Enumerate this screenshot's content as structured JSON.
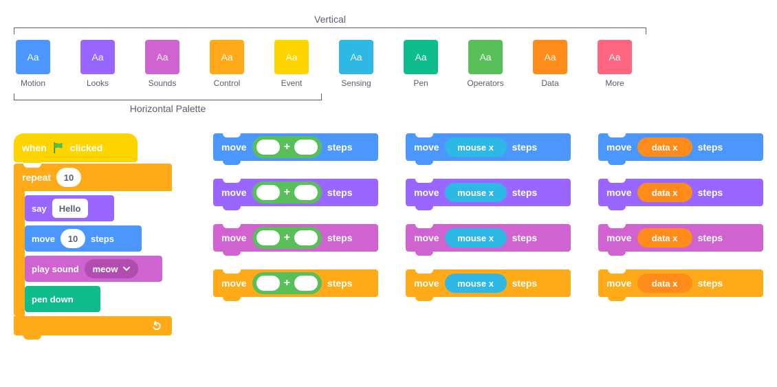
{
  "labels": {
    "vertical": "Vertical",
    "horizontal": "Horizontal Palette"
  },
  "swatch_text": "Aa",
  "categories": [
    {
      "name": "Motion",
      "color": "#4c97ff"
    },
    {
      "name": "Looks",
      "color": "#9966ff"
    },
    {
      "name": "Sounds",
      "color": "#cf63cf"
    },
    {
      "name": "Control",
      "color": "#ffab19"
    },
    {
      "name": "Event",
      "color": "#ffd500"
    },
    {
      "name": "Sensing",
      "color": "#2eb8e6"
    },
    {
      "name": "Pen",
      "color": "#0fbd8c"
    },
    {
      "name": "Operators",
      "color": "#59c059"
    },
    {
      "name": "Data",
      "color": "#ff8c1a"
    },
    {
      "name": "More",
      "color": "#ff6680"
    }
  ],
  "horizontal_palette_count": 5,
  "colors": {
    "motion": "#4c97ff",
    "looks": "#9966ff",
    "sounds": "#cf63cf",
    "control": "#ffab19",
    "event": "#ffd500",
    "sensing": "#2eb8e6",
    "pen": "#0fbd8c",
    "operators": "#59c059",
    "data": "#ff8c1a",
    "sounds_dropdown": "#b14db1",
    "flag": "#4cbf56",
    "text_muted": "#575e73"
  },
  "stack": {
    "hat_prefix": "when",
    "hat_suffix": "clicked",
    "repeat_label": "repeat",
    "repeat_value": "10",
    "say_label": "say",
    "say_value": "Hello",
    "move_label": "move",
    "move_value": "10",
    "move_suffix": "steps",
    "play_label": "play sound",
    "play_value": "meow",
    "pen_label": "pen down"
  },
  "grid": {
    "row_colors": [
      "#4c97ff",
      "#9966ff",
      "#cf63cf",
      "#ffab19"
    ],
    "move_label": "move",
    "steps_label": "steps",
    "plus": "+",
    "operator_color": "#59c059",
    "sensing_color": "#2eb8e6",
    "sensing_text": "mouse x",
    "data_color": "#ff8c1a",
    "data_text": "data x"
  }
}
